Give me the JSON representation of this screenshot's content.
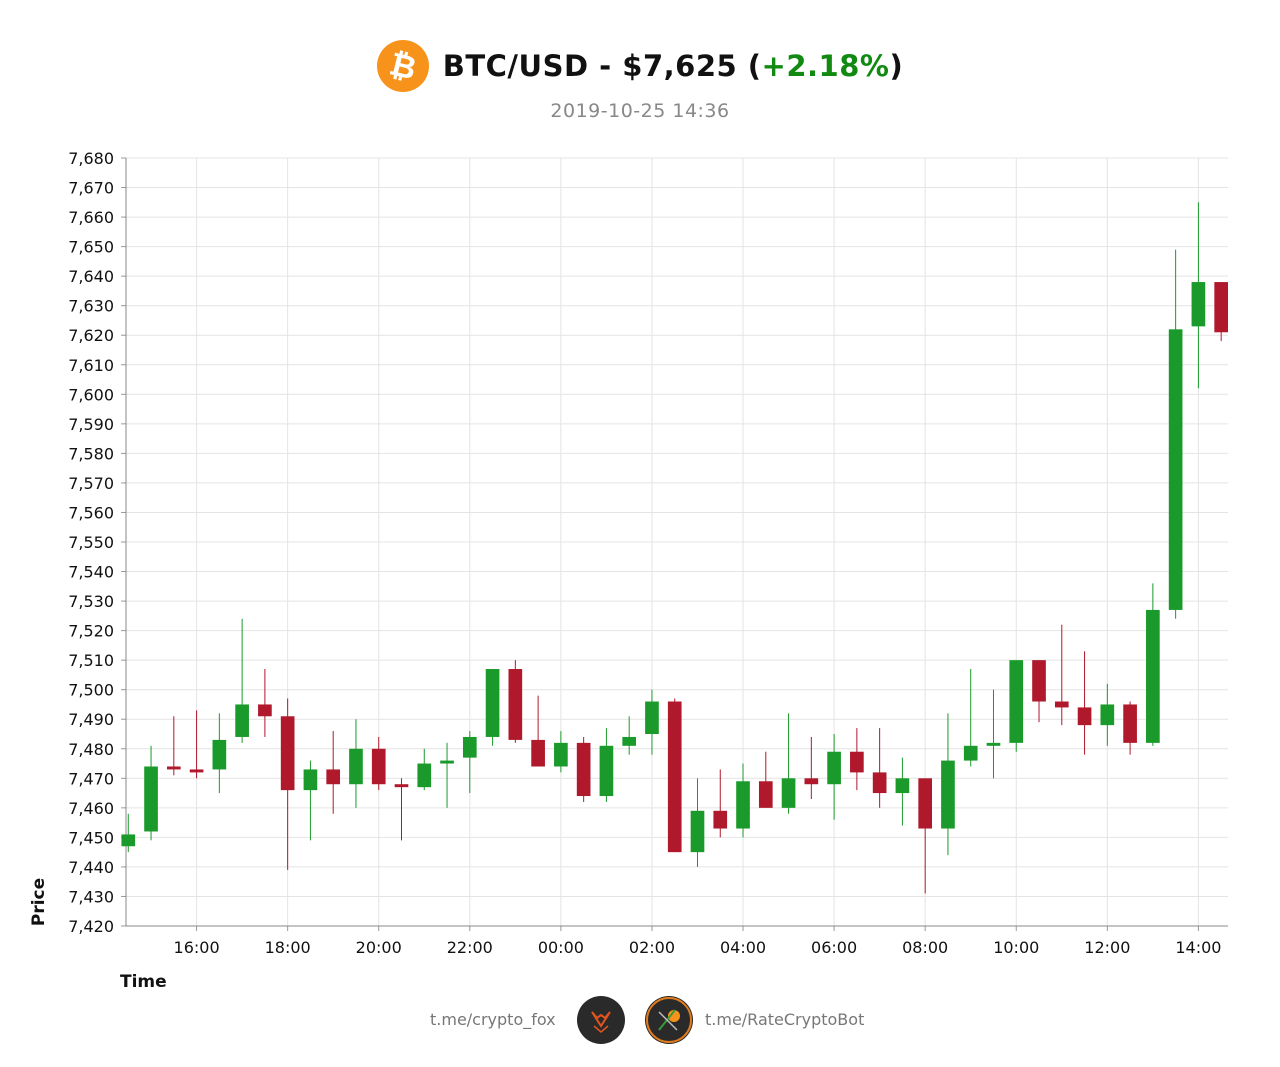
{
  "header": {
    "logo_icon": "bitcoin-icon",
    "logo_symbol": "₿",
    "title_prefix": "BTC/USD - $7,625 (",
    "change": "+2.18%",
    "title_suffix": ")",
    "subtitle": "2019-10-25 14:36"
  },
  "colors": {
    "up": "#1a9a2a",
    "down": "#b0182b",
    "change": "#128a12",
    "logo": "#f7931a"
  },
  "chart_data": {
    "type": "candlestick",
    "title": "BTC/USD - $7,625 (+2.18%)",
    "subtitle": "2019-10-25 14:36",
    "xlabel": "Time",
    "ylabel": "Price",
    "ylim": [
      7420,
      7680
    ],
    "yticks": [
      7420,
      7430,
      7440,
      7450,
      7460,
      7470,
      7480,
      7490,
      7500,
      7510,
      7520,
      7530,
      7540,
      7550,
      7560,
      7570,
      7580,
      7590,
      7600,
      7610,
      7620,
      7630,
      7640,
      7650,
      7660,
      7670,
      7680
    ],
    "ytick_labels": [
      "7,420",
      "7,430",
      "7,440",
      "7,450",
      "7,460",
      "7,470",
      "7,480",
      "7,490",
      "7,500",
      "7,510",
      "7,520",
      "7,530",
      "7,540",
      "7,550",
      "7,560",
      "7,570",
      "7,580",
      "7,590",
      "7,600",
      "7,610",
      "7,620",
      "7,630",
      "7,640",
      "7,650",
      "7,660",
      "7,670",
      "7,680"
    ],
    "xlim": [
      -0.05,
      24.15
    ],
    "xticks": [
      1.5,
      3.5,
      5.5,
      7.5,
      9.5,
      11.5,
      13.5,
      15.5,
      17.5,
      19.5,
      21.5,
      23.5
    ],
    "xtick_labels": [
      "16:00",
      "18:00",
      "20:00",
      "22:00",
      "00:00",
      "02:00",
      "04:00",
      "06:00",
      "08:00",
      "10:00",
      "12:00",
      "14:00"
    ],
    "grid": true,
    "candles": [
      {
        "open": 7447,
        "high": 7458,
        "low": 7445,
        "close": 7451
      },
      {
        "open": 7452,
        "high": 7481,
        "low": 7449,
        "close": 7474
      },
      {
        "open": 7474,
        "high": 7491,
        "low": 7471,
        "close": 7473
      },
      {
        "open": 7473,
        "high": 7493,
        "low": 7470,
        "close": 7472
      },
      {
        "open": 7473,
        "high": 7492,
        "low": 7465,
        "close": 7483
      },
      {
        "open": 7484,
        "high": 7524,
        "low": 7482,
        "close": 7495
      },
      {
        "open": 7495,
        "high": 7507,
        "low": 7484,
        "close": 7491
      },
      {
        "open": 7491,
        "high": 7497,
        "low": 7439,
        "close": 7466
      },
      {
        "open": 7466,
        "high": 7476,
        "low": 7449,
        "close": 7473
      },
      {
        "open": 7473,
        "high": 7486,
        "low": 7458,
        "close": 7468
      },
      {
        "open": 7468,
        "high": 7490,
        "low": 7460,
        "close": 7480
      },
      {
        "open": 7480,
        "high": 7484,
        "low": 7466,
        "close": 7468
      },
      {
        "open": 7468,
        "high": 7470,
        "low": 7449,
        "close": 7467
      },
      {
        "open": 7467,
        "high": 7480,
        "low": 7466,
        "close": 7475
      },
      {
        "open": 7475,
        "high": 7482,
        "low": 7460,
        "close": 7476
      },
      {
        "open": 7477,
        "high": 7486,
        "low": 7465,
        "close": 7484
      },
      {
        "open": 7484,
        "high": 7507,
        "low": 7481,
        "close": 7507
      },
      {
        "open": 7507,
        "high": 7510,
        "low": 7482,
        "close": 7483
      },
      {
        "open": 7483,
        "high": 7498,
        "low": 7474,
        "close": 7474
      },
      {
        "open": 7474,
        "high": 7486,
        "low": 7472,
        "close": 7482
      },
      {
        "open": 7482,
        "high": 7484,
        "low": 7462,
        "close": 7464
      },
      {
        "open": 7464,
        "high": 7487,
        "low": 7462,
        "close": 7481
      },
      {
        "open": 7481,
        "high": 7491,
        "low": 7478,
        "close": 7484
      },
      {
        "open": 7485,
        "high": 7500,
        "low": 7478,
        "close": 7496
      },
      {
        "open": 7496,
        "high": 7497,
        "low": 7445,
        "close": 7445
      },
      {
        "open": 7445,
        "high": 7470,
        "low": 7440,
        "close": 7459
      },
      {
        "open": 7459,
        "high": 7473,
        "low": 7450,
        "close": 7453
      },
      {
        "open": 7453,
        "high": 7475,
        "low": 7450,
        "close": 7469
      },
      {
        "open": 7469,
        "high": 7479,
        "low": 7460,
        "close": 7460
      },
      {
        "open": 7460,
        "high": 7492,
        "low": 7458,
        "close": 7470
      },
      {
        "open": 7470,
        "high": 7484,
        "low": 7463,
        "close": 7468
      },
      {
        "open": 7468,
        "high": 7485,
        "low": 7456,
        "close": 7479
      },
      {
        "open": 7479,
        "high": 7487,
        "low": 7466,
        "close": 7472
      },
      {
        "open": 7472,
        "high": 7487,
        "low": 7460,
        "close": 7465
      },
      {
        "open": 7465,
        "high": 7477,
        "low": 7454,
        "close": 7470
      },
      {
        "open": 7470,
        "high": 7470,
        "low": 7431,
        "close": 7453
      },
      {
        "open": 7453,
        "high": 7492,
        "low": 7444,
        "close": 7476
      },
      {
        "open": 7476,
        "high": 7507,
        "low": 7474,
        "close": 7481
      },
      {
        "open": 7481,
        "high": 7500,
        "low": 7470,
        "close": 7482
      },
      {
        "open": 7482,
        "high": 7510,
        "low": 7479,
        "close": 7510
      },
      {
        "open": 7510,
        "high": 7510,
        "low": 7489,
        "close": 7496
      },
      {
        "open": 7496,
        "high": 7522,
        "low": 7488,
        "close": 7494
      },
      {
        "open": 7494,
        "high": 7513,
        "low": 7478,
        "close": 7488
      },
      {
        "open": 7488,
        "high": 7502,
        "low": 7481,
        "close": 7495
      },
      {
        "open": 7495,
        "high": 7496,
        "low": 7478,
        "close": 7482
      },
      {
        "open": 7482,
        "high": 7536,
        "low": 7481,
        "close": 7527
      },
      {
        "open": 7527,
        "high": 7649,
        "low": 7524,
        "close": 7622
      },
      {
        "open": 7623,
        "high": 7665,
        "low": 7602,
        "close": 7638
      },
      {
        "open": 7638,
        "high": 7638,
        "low": 7618,
        "close": 7621
      }
    ]
  },
  "footer": {
    "left_text": "t.me/crypto_fox",
    "right_text": "t.me/RateCryptoBot",
    "left_avatar_icon": "fox-logo-icon",
    "right_avatar_icon": "ratecryptobot-logo-icon"
  }
}
